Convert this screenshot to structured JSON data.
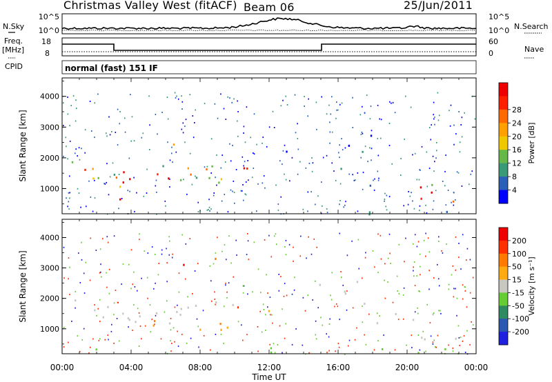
{
  "header": {
    "station": "Christmas Valley West (fitACF)",
    "beam": "Beam 06",
    "date": "25/Jun/2011",
    "mode": "normal (fast) 151 IF"
  },
  "left_labels": {
    "nsky": "N.Sky",
    "freq": "Freq.",
    "mhz": "[MHz]",
    "cpid": "CPID"
  },
  "right_labels": {
    "nsearch": "N.Search",
    "nave": "Nave"
  },
  "panels": {
    "noise": {
      "left_ticks": [
        "10^5",
        "10^0"
      ],
      "right_ticks": [
        "10^5",
        "10^0"
      ]
    },
    "freq": {
      "left_ticks": [
        "18",
        "8"
      ],
      "right_ticks": [
        "60",
        "0"
      ]
    }
  },
  "chart_data": [
    {
      "type": "heatmap",
      "name": "power",
      "ylabel": "Slant Range [km]",
      "xlabel": "",
      "ylim": [
        180,
        4600
      ],
      "yticks": [
        "1000",
        "2000",
        "3000",
        "4000"
      ],
      "x_ticks": [
        "00:00",
        "04:00",
        "08:00",
        "12:00",
        "16:00",
        "20:00",
        "00:00"
      ],
      "colorbar": {
        "label": "Power [dB]",
        "ticks": [
          "4",
          "8",
          "12",
          "16",
          "20",
          "24",
          "28"
        ],
        "colors": [
          "#0000ff",
          "#2a60b8",
          "#3a9a78",
          "#66b848",
          "#f0c800",
          "#ffa000",
          "#ff6a00",
          "#ff2000",
          "#ee0000"
        ]
      }
    },
    {
      "type": "heatmap",
      "name": "velocity",
      "ylabel": "Slant Range [km]",
      "xlabel": "Time UT",
      "ylim": [
        180,
        4600
      ],
      "yticks": [
        "1000",
        "2000",
        "3000",
        "4000"
      ],
      "x_ticks": [
        "00:00",
        "04:00",
        "08:00",
        "12:00",
        "16:00",
        "20:00",
        "00:00"
      ],
      "colorbar": {
        "label": "Velocity [m s⁻¹]",
        "ticks": [
          "200",
          "100",
          "50",
          "15",
          "-15",
          "-50",
          "-100",
          "-200"
        ],
        "colors": [
          "#2020e0",
          "#2a58b0",
          "#2e8a60",
          "#66cc33",
          "#c8c8c0",
          "#ffaa10",
          "#ff7a00",
          "#ff3000",
          "#ee0000"
        ]
      }
    }
  ]
}
